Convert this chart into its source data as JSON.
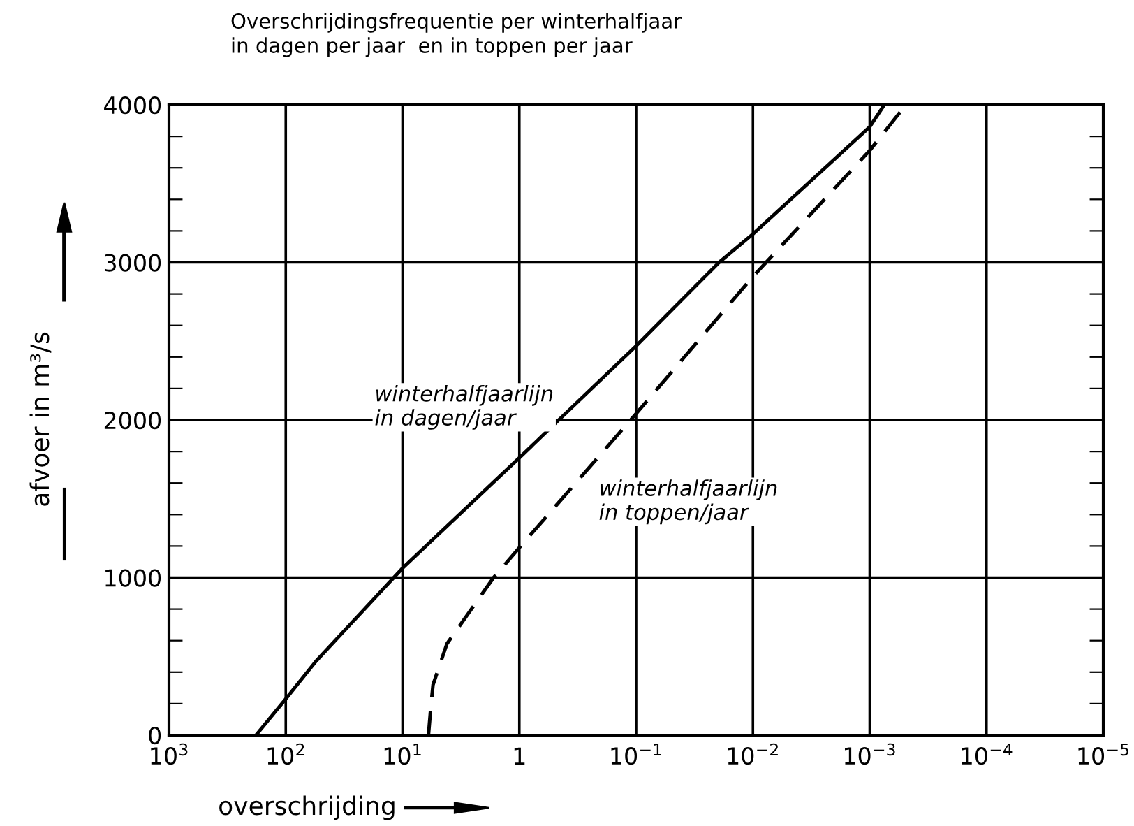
{
  "chart_data": {
    "type": "line",
    "title": "Overschrijdingsfrequentie per winterhalfjaar\nin dagen per jaar  en in toppen per jaar",
    "xlabel": "overschrijding",
    "ylabel": "afvoer in m³/s",
    "log": "x",
    "xlim": [
      1000,
      1e-05
    ],
    "xticks": [
      {
        "value": 1000,
        "label": "10$^{3}$"
      },
      {
        "value": 100,
        "label": "10$^{2}$"
      },
      {
        "value": 10,
        "label": "10$^{1}$"
      },
      1,
      {
        "value": 0.1,
        "label": "10$^{−1}$"
      },
      {
        "value": 0.01,
        "label": "10$^{−2}$"
      },
      {
        "value": 0.001,
        "label": "10$^{−3}$"
      },
      {
        "value": 0.0001,
        "label": "10$^{−4}$"
      },
      {
        "value": 1e-05,
        "label": "10$^{−5}$"
      }
    ],
    "ylim": [
      0,
      4000
    ],
    "yticks": [
      0,
      {
        "value": 200,
        "label": null
      },
      {
        "value": 400,
        "label": null
      },
      {
        "value": 600,
        "label": null
      },
      {
        "value": 800,
        "label": null
      },
      1000,
      {
        "value": 1200,
        "label": null
      },
      {
        "value": 1400,
        "label": null
      },
      {
        "value": 1600,
        "label": null
      },
      {
        "value": 1800,
        "label": null
      },
      2000,
      {
        "value": 2200,
        "label": null
      },
      {
        "value": 2400,
        "label": null
      },
      {
        "value": 2600,
        "label": null
      },
      {
        "value": 2800,
        "label": null
      },
      3000,
      {
        "value": 3200,
        "label": null
      },
      {
        "value": 3400,
        "label": null
      },
      {
        "value": 3600,
        "label": null
      },
      {
        "value": 3800,
        "label": null
      },
      4000
    ],
    "grid": true,
    "series": [
      {
        "color": "#000000",
        "line_style": "solid",
        "x": [
          180,
          100,
          55,
          10,
          1,
          0.46,
          0.1,
          0.0195,
          0.01,
          0.001,
          0.00075
        ],
        "values": [
          0,
          230,
          470,
          1060,
          1760,
          2000,
          2470,
          3000,
          3180,
          3860,
          4000
        ]
      },
      {
        "color": "#000000",
        "line_style": "dashed",
        "x": [
          6.0,
          5.74,
          5.48,
          4.17,
          1.66,
          1,
          0.1,
          0.01,
          0.001,
          0.00049
        ],
        "values": [
          0,
          170,
          320,
          580,
          1000,
          1190,
          2040,
          2910,
          3710,
          4000
        ]
      }
    ],
    "annotations": [
      "winterhalfjaarlijn\nin dagen/jaar",
      "winterhalfjaarlijn\nin toppen/jaar"
    ]
  }
}
